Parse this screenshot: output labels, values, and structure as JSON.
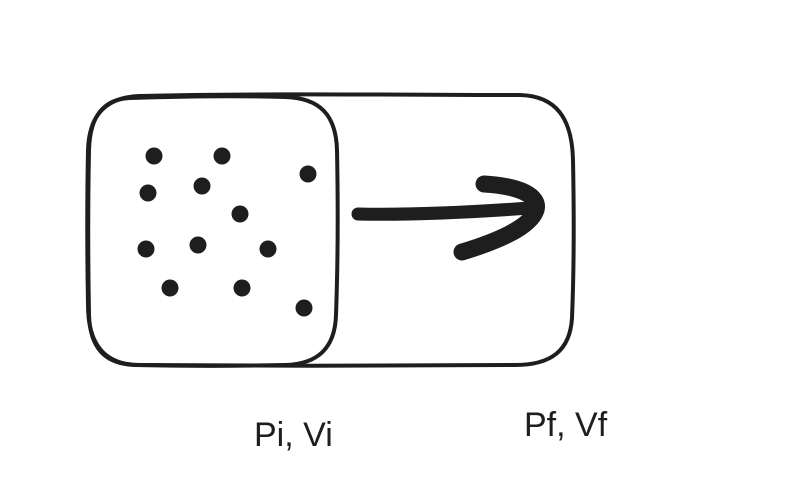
{
  "diagram": {
    "labels": {
      "initial_state": "Pi, Vi",
      "final_state": "Pf, Vf"
    },
    "particle_count": 12,
    "arrow_direction": "right",
    "colors": {
      "stroke": "#1e1e1e",
      "background": "#ffffff"
    }
  }
}
